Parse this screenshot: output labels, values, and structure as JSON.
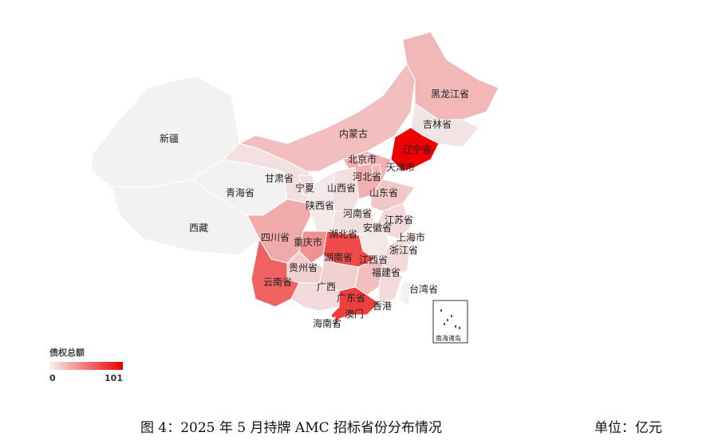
{
  "chart_data": {
    "type": "choropleth",
    "colors": {
      "low": "#f2f2f2",
      "high": "#ee0000"
    },
    "legend": {
      "title": "债权总额",
      "min": 0,
      "max": 101,
      "placement": "bottom-left"
    },
    "regions": [
      {
        "id": "xinjiang",
        "label": "新疆",
        "value": 0
      },
      {
        "id": "xizang",
        "label": "西藏",
        "value": 0
      },
      {
        "id": "qinghai",
        "label": "青海省",
        "value": 0
      },
      {
        "id": "gansu",
        "label": "甘肃省",
        "value": 8
      },
      {
        "id": "neimenggu",
        "label": "内蒙古",
        "value": 22
      },
      {
        "id": "heilongjiang",
        "label": "黑龙江省",
        "value": 25
      },
      {
        "id": "jilin",
        "label": "吉林省",
        "value": 6
      },
      {
        "id": "liaoning",
        "label": "辽宁省",
        "value": 101
      },
      {
        "id": "hebei",
        "label": "河北省",
        "value": 28
      },
      {
        "id": "beijing",
        "label": "北京市",
        "value": 20
      },
      {
        "id": "tianjin",
        "label": "天津市",
        "value": 25
      },
      {
        "id": "shanxi",
        "label": "山西省",
        "value": 8
      },
      {
        "id": "shandong",
        "label": "山东省",
        "value": 18
      },
      {
        "id": "ningxia",
        "label": "宁夏",
        "value": 8
      },
      {
        "id": "shaanxi",
        "label": "陕西省",
        "value": 4
      },
      {
        "id": "henan",
        "label": "河南省",
        "value": 8
      },
      {
        "id": "jiangsu",
        "label": "江苏省",
        "value": 10
      },
      {
        "id": "anhui",
        "label": "安徽省",
        "value": 4
      },
      {
        "id": "shanghai",
        "label": "上海市",
        "value": 10
      },
      {
        "id": "zhejiang",
        "label": "浙江省",
        "value": 10
      },
      {
        "id": "hubei",
        "label": "湖北省",
        "value": 70
      },
      {
        "id": "chongqing",
        "label": "重庆市",
        "value": 40
      },
      {
        "id": "sichuan",
        "label": "四川省",
        "value": 30
      },
      {
        "id": "guizhou",
        "label": "贵州省",
        "value": 14
      },
      {
        "id": "hunan",
        "label": "湖南省",
        "value": 14
      },
      {
        "id": "jiangxi",
        "label": "江西省",
        "value": 22
      },
      {
        "id": "fujian",
        "label": "福建省",
        "value": 10
      },
      {
        "id": "yunnan",
        "label": "云南省",
        "value": 60
      },
      {
        "id": "guangxi",
        "label": "广西",
        "value": 10
      },
      {
        "id": "guangdong",
        "label": "广东省",
        "value": 75
      },
      {
        "id": "hainan",
        "label": "海南省",
        "value": 0
      },
      {
        "id": "taiwan",
        "label": "台湾省",
        "value": 0
      },
      {
        "id": "xianggang",
        "label": "香港",
        "value": 0
      },
      {
        "id": "aomen",
        "label": "澳门",
        "value": 0
      }
    ],
    "inset_label": "南海诸岛"
  },
  "caption": "图 4：2025 年 5 月持牌 AMC 招标省份分布情况",
  "unit": "单位：亿元"
}
